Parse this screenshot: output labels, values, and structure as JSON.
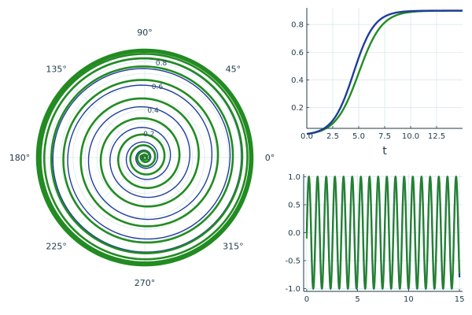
{
  "colors": {
    "series1": "#1f3d9c",
    "series2": "#228b22",
    "grid": "#d6e6e8",
    "axis": "#1f3a4a"
  },
  "chart_data": [
    {
      "type": "line",
      "projection": "polar",
      "title": "",
      "angle_tick_labels": [
        "0°",
        "45°",
        "90°",
        "135°",
        "180°",
        "225°",
        "270°",
        "315°"
      ],
      "radial_tick_labels": [
        "0.0",
        "0.2",
        "0.4",
        "0.6",
        "0.8"
      ],
      "rlim": [
        0,
        0.9
      ],
      "grid": true,
      "series": [
        {
          "theta_max_turns": 18,
          "r_final": 0.9,
          "curve": "logistic",
          "growth_rate": 1.0,
          "midpoint": 4.5,
          "t_max": 15
        },
        {
          "theta_max_turns": 18,
          "r_final": 0.9,
          "curve": "logistic",
          "growth_rate": 0.9,
          "midpoint": 5.0,
          "t_max": 15
        }
      ]
    },
    {
      "type": "line",
      "title": "",
      "xlabel": "t",
      "ylabel": "",
      "xlim": [
        0,
        15
      ],
      "ylim": [
        0.05,
        0.92
      ],
      "xticks": [
        "0.0",
        "2.5",
        "5.0",
        "7.5",
        "10.0",
        "12.5"
      ],
      "yticks": [
        "0.2",
        "0.4",
        "0.6",
        "0.8"
      ],
      "grid": true,
      "series": [
        {
          "x": [
            0,
            1,
            2,
            3,
            4,
            4.5,
            5,
            6,
            7,
            8,
            9,
            10,
            11,
            12,
            13,
            14,
            15
          ],
          "values": [
            0.09,
            0.14,
            0.22,
            0.34,
            0.49,
            0.56,
            0.63,
            0.74,
            0.82,
            0.86,
            0.885,
            0.893,
            0.897,
            0.899,
            0.9,
            0.9,
            0.9
          ]
        },
        {
          "x": [
            0,
            1,
            2,
            3,
            4,
            5,
            5.5,
            6,
            7,
            8,
            9,
            10,
            11,
            12,
            13,
            14,
            15
          ],
          "values": [
            0.09,
            0.13,
            0.2,
            0.3,
            0.42,
            0.52,
            0.58,
            0.64,
            0.75,
            0.83,
            0.87,
            0.888,
            0.895,
            0.898,
            0.9,
            0.9,
            0.9
          ]
        }
      ]
    },
    {
      "type": "line",
      "title": "",
      "xlabel": "",
      "ylabel": "",
      "xlim": [
        -0.3,
        15.3
      ],
      "ylim": [
        -1.05,
        1.05
      ],
      "xticks": [
        "0",
        "5",
        "10",
        "15"
      ],
      "yticks": [
        "1.0",
        "0.5",
        "0.0",
        "-0.5",
        "-1.0"
      ],
      "grid": true,
      "series": [
        {
          "function": "sin",
          "period": 0.85,
          "amplitude": 1.0,
          "phase_deg": 0,
          "t_max": 15
        },
        {
          "function": "sin",
          "period": 0.85,
          "amplitude": 1.0,
          "phase_deg": -6,
          "t_max": 15
        }
      ]
    }
  ]
}
